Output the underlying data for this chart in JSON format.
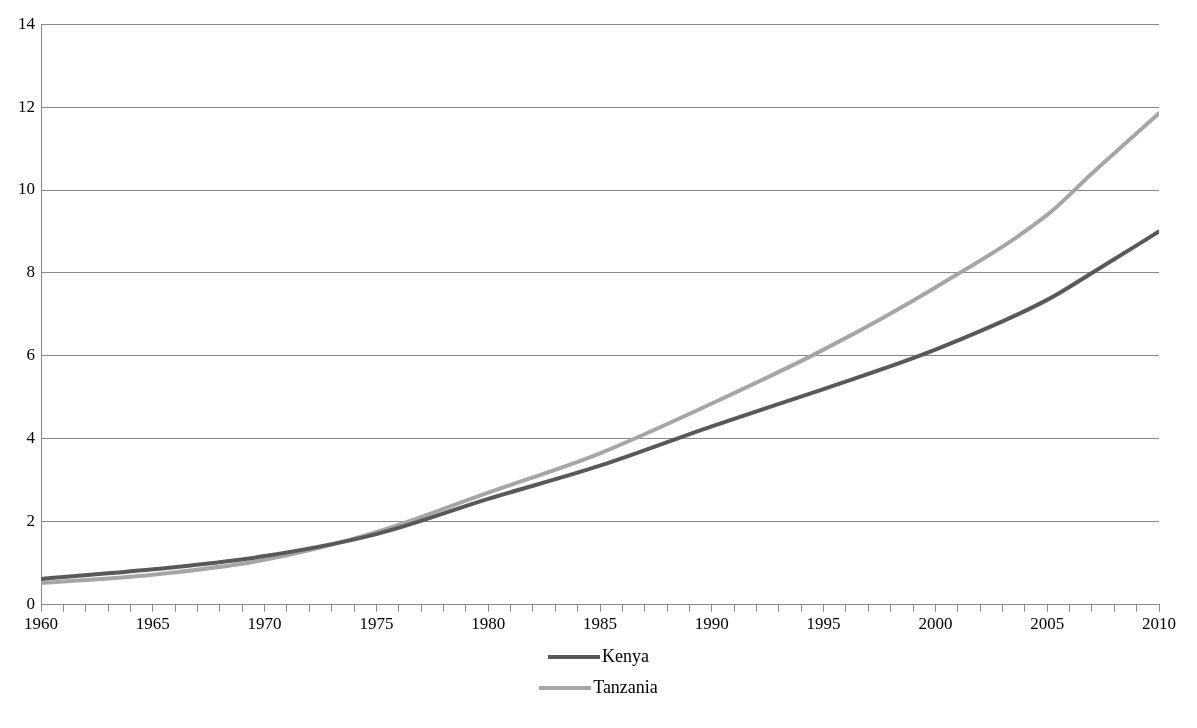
{
  "chart_data": {
    "type": "line",
    "x": [
      1960,
      1965,
      1970,
      1975,
      1980,
      1985,
      1990,
      1995,
      2000,
      2005,
      2007,
      2010
    ],
    "series": [
      {
        "name": "Kenya",
        "color": "#595959",
        "values": [
          0.62,
          0.85,
          1.17,
          1.7,
          2.55,
          3.35,
          4.3,
          5.2,
          6.15,
          7.35,
          8.0,
          9.0
        ]
      },
      {
        "name": "Tanzania",
        "color": "#a6a6a6",
        "values": [
          0.52,
          0.72,
          1.08,
          1.75,
          2.7,
          3.65,
          4.85,
          6.15,
          7.65,
          9.4,
          10.4,
          11.85
        ]
      }
    ],
    "xlim": [
      1960,
      2010
    ],
    "xticks": [
      1960,
      {
        "value": 1961,
        "label": null
      },
      {
        "value": 1962,
        "label": null
      },
      {
        "value": 1963,
        "label": null
      },
      {
        "value": 1964,
        "label": null
      },
      1965,
      {
        "value": 1966,
        "label": null
      },
      {
        "value": 1967,
        "label": null
      },
      {
        "value": 1968,
        "label": null
      },
      {
        "value": 1969,
        "label": null
      },
      1970,
      {
        "value": 1971,
        "label": null
      },
      {
        "value": 1972,
        "label": null
      },
      {
        "value": 1973,
        "label": null
      },
      {
        "value": 1974,
        "label": null
      },
      1975,
      {
        "value": 1976,
        "label": null
      },
      {
        "value": 1977,
        "label": null
      },
      {
        "value": 1978,
        "label": null
      },
      {
        "value": 1979,
        "label": null
      },
      1980,
      {
        "value": 1981,
        "label": null
      },
      {
        "value": 1982,
        "label": null
      },
      {
        "value": 1983,
        "label": null
      },
      {
        "value": 1984,
        "label": null
      },
      1985,
      {
        "value": 1986,
        "label": null
      },
      {
        "value": 1987,
        "label": null
      },
      {
        "value": 1988,
        "label": null
      },
      {
        "value": 1989,
        "label": null
      },
      1990,
      {
        "value": 1991,
        "label": null
      },
      {
        "value": 1992,
        "label": null
      },
      {
        "value": 1993,
        "label": null
      },
      {
        "value": 1994,
        "label": null
      },
      1995,
      {
        "value": 1996,
        "label": null
      },
      {
        "value": 1997,
        "label": null
      },
      {
        "value": 1998,
        "label": null
      },
      {
        "value": 1999,
        "label": null
      },
      2000,
      {
        "value": 2001,
        "label": null
      },
      {
        "value": 2002,
        "label": null
      },
      {
        "value": 2003,
        "label": null
      },
      {
        "value": 2004,
        "label": null
      },
      2005,
      {
        "value": 2006,
        "label": null
      },
      {
        "value": 2007,
        "label": null
      },
      {
        "value": 2008,
        "label": null
      },
      {
        "value": 2009,
        "label": null
      },
      2010
    ],
    "ylim": [
      0,
      14
    ],
    "yticks": [
      0,
      2,
      4,
      6,
      8,
      10,
      12,
      14
    ],
    "grid": "y",
    "legend": "bottom",
    "marker": "none",
    "line_style": "solid"
  }
}
